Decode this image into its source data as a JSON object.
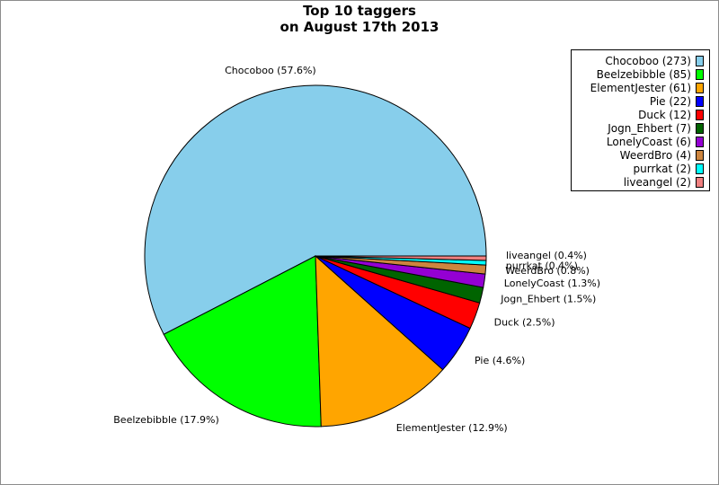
{
  "title_lines": [
    "Top 10 taggers",
    "on August 17th 2013"
  ],
  "colors": {
    "Chocoboo": "#87ceeb",
    "Beelzebibble": "#00ff00",
    "ElementJester": "#ffa500",
    "Pie": "#0000ff",
    "Duck": "#ff0000",
    "Jogn_Ehbert": "#006400",
    "LonelyCoast": "#9400d3",
    "WeerdBro": "#cd853f",
    "purrkat": "#00ffff",
    "liveangel": "#f08080"
  },
  "chart_data": {
    "type": "pie",
    "title": "Top 10 taggers on August 17th 2013",
    "legend_placement": "top-right",
    "slices": [
      {
        "name": "Chocoboo",
        "value": 273,
        "legend_label": "Chocoboo (273)",
        "slice_label": "Chocoboo (57.6%)"
      },
      {
        "name": "Beelzebibble",
        "value": 85,
        "legend_label": "Beelzebibble (85)",
        "slice_label": "Beelzebibble (17.9%)"
      },
      {
        "name": "ElementJester",
        "value": 61,
        "legend_label": "ElementJester (61)",
        "slice_label": "ElementJester (12.9%)"
      },
      {
        "name": "Pie",
        "value": 22,
        "legend_label": "Pie (22)",
        "slice_label": "Pie (4.6%)"
      },
      {
        "name": "Duck",
        "value": 12,
        "legend_label": "Duck (12)",
        "slice_label": "Duck (2.5%)"
      },
      {
        "name": "Jogn_Ehbert",
        "value": 7,
        "legend_label": "Jogn_Ehbert (7)",
        "slice_label": "Jogn_Ehbert (1.5%)"
      },
      {
        "name": "LonelyCoast",
        "value": 6,
        "legend_label": "LonelyCoast (6)",
        "slice_label": "LonelyCoast (1.3%)"
      },
      {
        "name": "WeerdBro",
        "value": 4,
        "legend_label": "WeerdBro (4)",
        "slice_label": "WeerdBro (0.8%)"
      },
      {
        "name": "purrkat",
        "value": 2,
        "legend_label": "purrkat (2)",
        "slice_label": "purrkat (0.4%)"
      },
      {
        "name": "liveangel",
        "value": 2,
        "legend_label": "liveangel (2)",
        "slice_label": "liveangel (0.4%)"
      }
    ]
  }
}
